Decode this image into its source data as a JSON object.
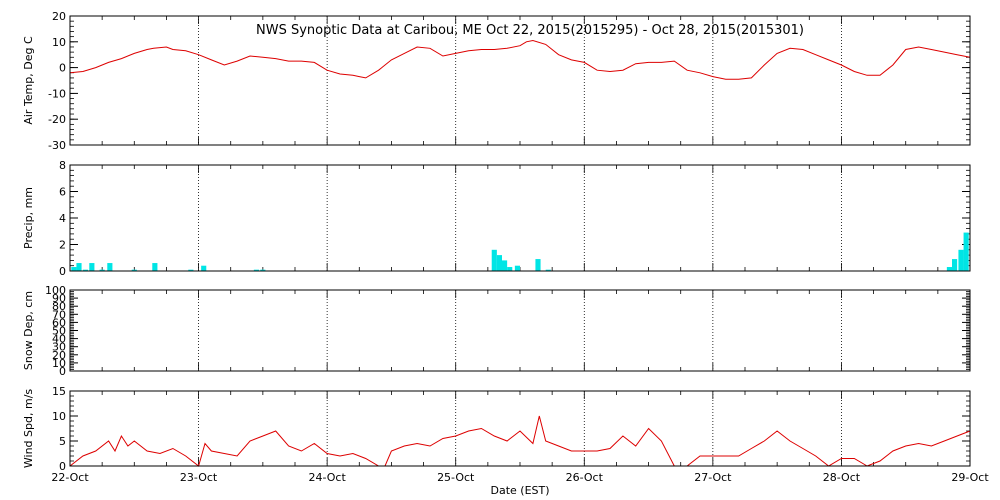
{
  "title": "NWS Synoptic Data at Caribou, ME   Oct 22, 2015(2015295) - Oct 28, 2015(2015301)",
  "x_axis": {
    "label": "Date (EST)",
    "ticks": [
      "22-Oct",
      "23-Oct",
      "24-Oct",
      "25-Oct",
      "26-Oct",
      "27-Oct",
      "28-Oct",
      "29-Oct"
    ]
  },
  "colors": {
    "temp": "#dd0000",
    "precip": "#00e5e5",
    "wind": "#dd0000",
    "frame": "#000000"
  },
  "chart_data": [
    {
      "type": "line",
      "ylabel": "Air Temp, Deg C",
      "ylim": [
        -30,
        20
      ],
      "yticks": [
        -30,
        -20,
        -10,
        0,
        10,
        20
      ],
      "x_unit": "days since 22-Oct 00:00",
      "series": [
        {
          "x": [
            0,
            0.1,
            0.2,
            0.3,
            0.4,
            0.5,
            0.6,
            0.65,
            0.75,
            0.8,
            0.9,
            1.0,
            1.1,
            1.2,
            1.3,
            1.4,
            1.5,
            1.6,
            1.7,
            1.8,
            1.9,
            2.0,
            2.1,
            2.2,
            2.25,
            2.3,
            2.4,
            2.5,
            2.6,
            2.7,
            2.8,
            2.9,
            3.0,
            3.1,
            3.2,
            3.3,
            3.4,
            3.5,
            3.55,
            3.6,
            3.7,
            3.8,
            3.9,
            4.0,
            4.1,
            4.2,
            4.3,
            4.4,
            4.5,
            4.6,
            4.7,
            4.8,
            4.9,
            5.0,
            5.1,
            5.2,
            5.3,
            5.4,
            5.5,
            5.6,
            5.7,
            5.8,
            5.9,
            6.0,
            6.1,
            6.2,
            6.3,
            6.4,
            6.5,
            6.6,
            6.7,
            6.8,
            6.9,
            7.0
          ],
          "y": [
            -2,
            -1.5,
            0,
            2,
            3.5,
            5.5,
            7,
            7.5,
            8,
            7,
            6.5,
            5,
            3,
            1,
            2.5,
            4.5,
            4,
            3.5,
            2.5,
            2.5,
            2,
            -1,
            -2.5,
            -3,
            -3.5,
            -4,
            -1,
            3,
            5.5,
            8,
            7.5,
            4.5,
            5.5,
            6.5,
            7,
            7,
            7.5,
            8.5,
            10,
            10.5,
            9,
            5,
            3,
            2,
            -1,
            -1.5,
            -1,
            1.5,
            2,
            2,
            2.5,
            -1,
            -2,
            -3.5,
            -4.5,
            -4.5,
            -4,
            1,
            5.5,
            7.5,
            7,
            5,
            3,
            1,
            -1.5,
            -3,
            -3,
            1,
            7,
            8,
            7,
            6,
            5,
            4
          ]
        }
      ]
    },
    {
      "type": "bar",
      "ylabel": "Precip, mm",
      "ylim": [
        0,
        8
      ],
      "yticks": [
        0,
        2,
        4,
        6,
        8
      ],
      "x_unit": "days since 22-Oct 00:00",
      "bar_width": 0.04,
      "x": [
        0.03,
        0.07,
        0.12,
        0.17,
        0.25,
        0.31,
        0.5,
        0.66,
        0.94,
        1.04,
        1.45,
        1.5,
        3.3,
        3.34,
        3.38,
        3.42,
        3.48,
        3.64,
        3.72,
        6.84,
        6.88,
        6.93,
        6.97
      ],
      "values": [
        0.3,
        0.6,
        0.1,
        0.6,
        0.1,
        0.6,
        0.1,
        0.6,
        0.1,
        0.4,
        0.1,
        0.1,
        1.6,
        1.2,
        0.8,
        0.3,
        0.4,
        0.9,
        0.1,
        0.3,
        0.9,
        1.6,
        2.9
      ]
    },
    {
      "type": "line",
      "ylabel": "Snow Dep, cm",
      "ylim": [
        0,
        100
      ],
      "yticks": [
        0,
        10,
        20,
        30,
        40,
        50,
        60,
        70,
        80,
        90,
        100
      ],
      "series": []
    },
    {
      "type": "line",
      "ylabel": "Wind Spd, m/s",
      "ylim": [
        0,
        15
      ],
      "yticks": [
        0,
        5,
        10,
        15
      ],
      "x_unit": "days since 22-Oct 00:00",
      "series": [
        {
          "x": [
            0,
            0.1,
            0.2,
            0.3,
            0.35,
            0.4,
            0.45,
            0.5,
            0.6,
            0.7,
            0.8,
            0.9,
            1.0,
            1.05,
            1.1,
            1.2,
            1.3,
            1.4,
            1.5,
            1.6,
            1.7,
            1.8,
            1.9,
            2.0,
            2.1,
            2.2,
            2.3,
            2.4,
            2.45,
            2.5,
            2.6,
            2.7,
            2.8,
            2.9,
            3.0,
            3.1,
            3.2,
            3.3,
            3.4,
            3.5,
            3.6,
            3.65,
            3.7,
            3.8,
            3.9,
            4.0,
            4.1,
            4.2,
            4.3,
            4.4,
            4.5,
            4.6,
            4.7,
            4.8,
            4.9,
            5.0,
            5.1,
            5.2,
            5.3,
            5.4,
            5.5,
            5.6,
            5.7,
            5.8,
            5.9,
            6.0,
            6.1,
            6.2,
            6.3,
            6.4,
            6.5,
            6.6,
            6.7,
            6.8,
            6.9,
            7.0
          ],
          "y": [
            0,
            2,
            3,
            5,
            3,
            6,
            4,
            5,
            3,
            2.5,
            3.5,
            2,
            0,
            4.5,
            3,
            2.5,
            2,
            5,
            6,
            7,
            4,
            3,
            4.5,
            2.5,
            2,
            2.5,
            1.5,
            0,
            0,
            3,
            4,
            4.5,
            4,
            5.5,
            6,
            7,
            7.5,
            6,
            5,
            7,
            4.5,
            10,
            5,
            4,
            3,
            3,
            3,
            3.5,
            6,
            4,
            7.5,
            5,
            0,
            0,
            2,
            2,
            2,
            2,
            3.5,
            5,
            7,
            5,
            3.5,
            2,
            0,
            1.5,
            1.5,
            0,
            1,
            3,
            4,
            4.5,
            4,
            5,
            6,
            7
          ]
        }
      ]
    }
  ]
}
